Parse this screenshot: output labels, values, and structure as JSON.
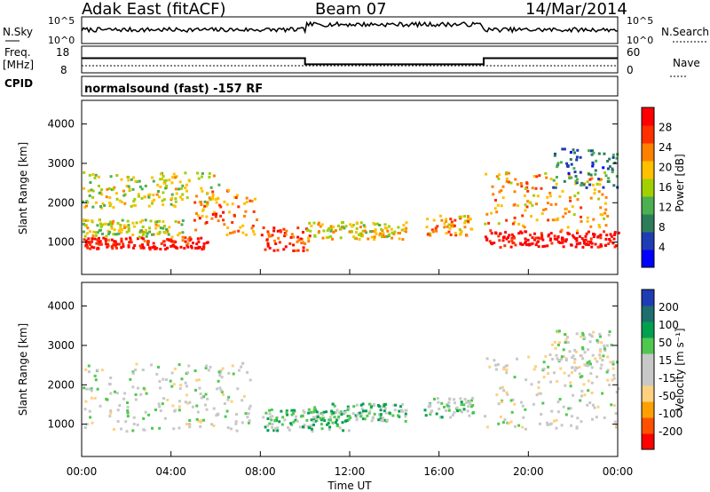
{
  "header": {
    "station": "Adak East (fitACF)",
    "beam": "Beam 07",
    "date": "14/Mar/2014"
  },
  "nsky_panel": {
    "left_label": "N.Sky",
    "right_label": "N.Search",
    "left_ticks": [
      "10^5",
      "10^0"
    ],
    "right_ticks": [
      "10^5",
      "10^0"
    ]
  },
  "freq_panel": {
    "left_label_1": "Freq.",
    "left_label_2": "[MHz]",
    "right_label": "Nave",
    "left_ticks": [
      "18",
      "8"
    ],
    "right_ticks": [
      "60",
      "0"
    ],
    "freq_steps": [
      {
        "t_start": 0,
        "t_end": 10,
        "value": 13.5
      },
      {
        "t_start": 10,
        "t_end": 18,
        "value": 11.2
      },
      {
        "t_start": 18,
        "t_end": 24,
        "value": 13.5
      }
    ]
  },
  "cpid": {
    "label": "CPID",
    "text": "normalsound (fast) -157 RF"
  },
  "colors": {
    "power": [
      "#0000ff",
      "#1e3cb4",
      "#2e7d5a",
      "#4caf50",
      "#a0d000",
      "#ffc000",
      "#ff8000",
      "#ff3000",
      "#ff0000"
    ],
    "velocity": [
      "#ff0000",
      "#ff5000",
      "#ffa000",
      "#ffd080",
      "#c8c8c8",
      "#c8c8c8",
      "#50c850",
      "#00a050",
      "#1e6e6e",
      "#1e3cb4"
    ]
  },
  "chart_data": [
    {
      "type": "heatmap",
      "title": "",
      "xlabel": "Time UT",
      "ylabel": "Slant Range [km]",
      "x_ticks": [
        "00:00",
        "04:00",
        "08:00",
        "12:00",
        "16:00",
        "20:00",
        "00:00"
      ],
      "y_ticks": [
        "1000",
        "2000",
        "3000",
        "4000"
      ],
      "ylim": [
        180,
        4600
      ],
      "xlim": [
        0,
        24
      ],
      "colorbar": {
        "label": "Power [dB]",
        "ticks": [
          "4",
          "8",
          "12",
          "16",
          "20",
          "24",
          "28"
        ],
        "range": [
          0,
          30
        ]
      },
      "regions": [
        {
          "t_start": 0.0,
          "t_end": 5.6,
          "r_min": 850,
          "r_max": 1150,
          "value": 28
        },
        {
          "t_start": 0.0,
          "t_end": 4.5,
          "r_min": 1150,
          "r_max": 1600,
          "value": 16
        },
        {
          "t_start": 0.0,
          "t_end": 6.2,
          "r_min": 1900,
          "r_max": 2800,
          "value": 16
        },
        {
          "t_start": 5.0,
          "t_end": 7.8,
          "r_min": 1200,
          "r_max": 2400,
          "value": 22
        },
        {
          "t_start": 8.0,
          "t_end": 10.2,
          "r_min": 800,
          "r_max": 1400,
          "value": 26
        },
        {
          "t_start": 10.0,
          "t_end": 14.5,
          "r_min": 1100,
          "r_max": 1550,
          "value": 18
        },
        {
          "t_start": 15.3,
          "t_end": 17.5,
          "r_min": 1200,
          "r_max": 1700,
          "value": 20
        },
        {
          "t_start": 18.0,
          "t_end": 24.0,
          "r_min": 900,
          "r_max": 1300,
          "value": 30
        },
        {
          "t_start": 18.0,
          "t_end": 23.5,
          "r_min": 1300,
          "r_max": 2800,
          "value": 20
        },
        {
          "t_start": 21.0,
          "t_end": 24.0,
          "r_min": 2400,
          "r_max": 3400,
          "value": 8
        }
      ]
    },
    {
      "type": "heatmap",
      "title": "",
      "xlabel": "Time UT",
      "ylabel": "Slant Range [km]",
      "x_ticks": [
        "00:00",
        "04:00",
        "08:00",
        "12:00",
        "16:00",
        "20:00",
        "00:00"
      ],
      "y_ticks": [
        "1000",
        "2000",
        "3000",
        "4000"
      ],
      "ylim": [
        180,
        4600
      ],
      "xlim": [
        0,
        24
      ],
      "colorbar": {
        "label": "Velocity [m s⁻¹]",
        "ticks": [
          "200",
          "100",
          "50",
          "15",
          "-15",
          "-50",
          "-100",
          "-200"
        ],
        "range": [
          -250,
          250
        ]
      },
      "regions": [
        {
          "t_start": 0.0,
          "t_end": 7.5,
          "r_min": 850,
          "r_max": 2600,
          "value": 0
        },
        {
          "t_start": 8.0,
          "t_end": 12.0,
          "r_min": 850,
          "r_max": 1400,
          "value": 60
        },
        {
          "t_start": 10.0,
          "t_end": 14.5,
          "r_min": 1100,
          "r_max": 1550,
          "value": 60
        },
        {
          "t_start": 15.3,
          "t_end": 17.5,
          "r_min": 1200,
          "r_max": 1700,
          "value": 40
        },
        {
          "t_start": 18.0,
          "t_end": 24.0,
          "r_min": 900,
          "r_max": 2800,
          "value": 0
        },
        {
          "t_start": 21.0,
          "t_end": 24.0,
          "r_min": 2400,
          "r_max": 3400,
          "value": 0
        }
      ]
    }
  ]
}
